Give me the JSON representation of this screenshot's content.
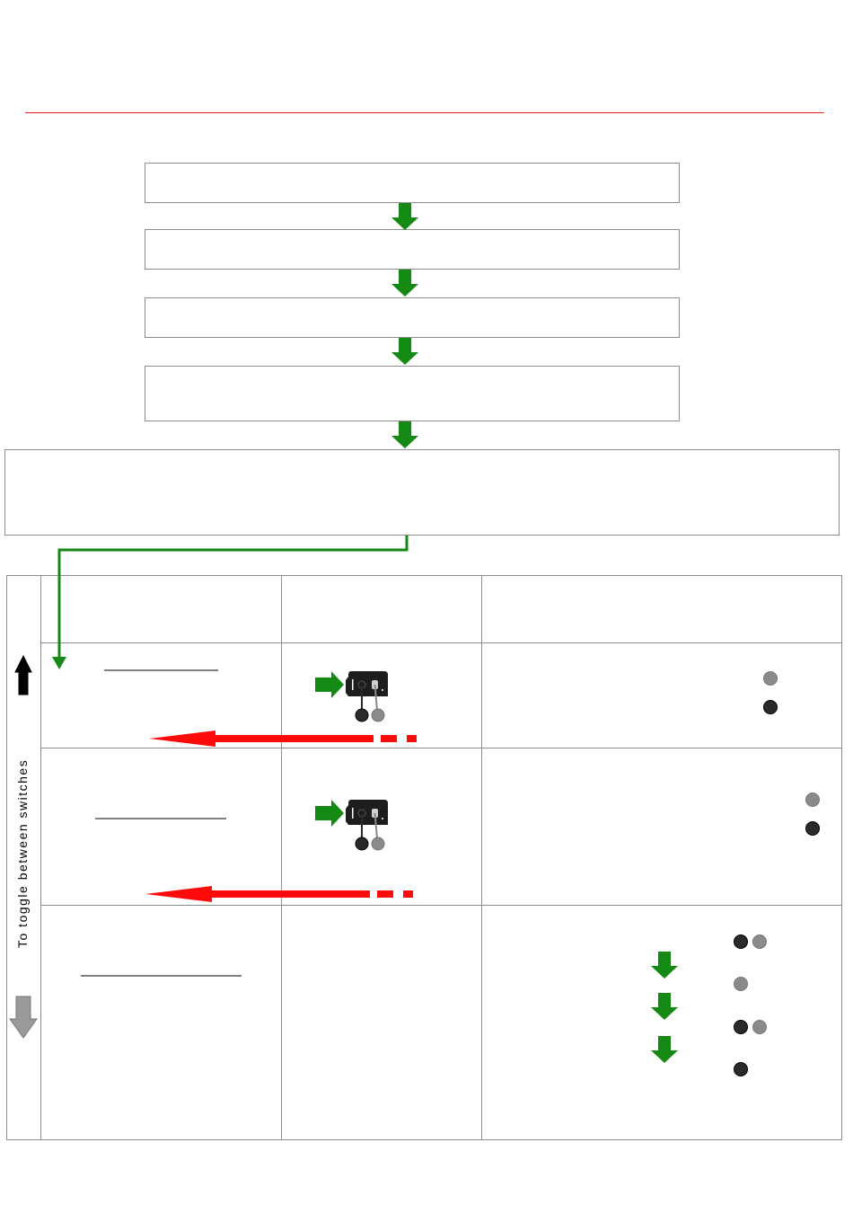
{
  "sidebar": {
    "vertical_label": "To toggle between switches"
  },
  "colors": {
    "rule": "#e8231f",
    "flow_arrow": "#148a14",
    "red_arrow": "#ff0a0a",
    "border": "#8c8c8c",
    "led_dark": "#2a2a2a",
    "led_gray": "#8a8a8a"
  },
  "icons": {
    "up": "black-up-arrow-icon",
    "down": "gray-down-arrow-icon",
    "device": "switch-device-icon"
  }
}
